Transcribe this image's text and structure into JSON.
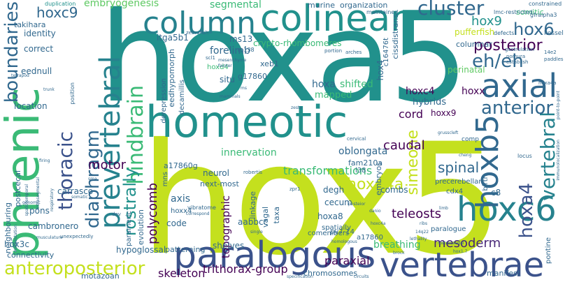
{
  "palette": {
    "teal": "#21918c",
    "green": "#3aba76",
    "lime": "#c4e01e",
    "yellow": "#e9e51a",
    "blue": "#31688e",
    "indigo": "#3b528b",
    "purple": "#482878",
    "dark": "#440154",
    "mint": "#5ec962",
    "sea": "#26828e"
  },
  "words": {
    "hoxa5": "hoxa5",
    "hox5": "hox5",
    "phrenic": "phrenic",
    "homeotic": "homeotic",
    "paralogous": "paralogous",
    "vertebrae": "vertebrae",
    "colinear": "colinear",
    "column": "column",
    "hoxc6": "hoxc6",
    "hoxb5": "hoxb5",
    "axial": "axial",
    "prevertebral": "prevertebral",
    "anteroposterior": "anteroposterior",
    "boundaries": "boundaries",
    "hindbrain": "hindbrain",
    "thoracic": "thoracic",
    "diaphragm": "diaphragm",
    "rostrally": "rostrally",
    "motor": "motor",
    "posterior": "posterior",
    "anterior": "anterior",
    "vertebral": "vertebral",
    "cluster": "cluster",
    "hox9": "hox9",
    "hox6": "hox6",
    "eh_eh": "eh/eh",
    "hoxd4a": "hoxd4a",
    "hoxa4": "hoxa4",
    "spinal": "spinal",
    "simeone": "simeone",
    "teleosts": "teleosts",
    "mesoderm": "mesoderm",
    "transformations": "transformations",
    "caudal": "caudal",
    "cord": "cord",
    "embryogenesis": "embryogenesis",
    "segmental": "segmental",
    "hoxc9": "hoxc9",
    "forelimb": "forelimb",
    "trithorax_group": "trithorax-group",
    "skeleton": "skeleton",
    "paraxial": "paraxial",
    "breathing": "breathing",
    "innervation": "innervation",
    "polycomb": "polycomb",
    "topographic": "topographic",
    "hoxa": "hoxa",
    "shifted": "shifted",
    "mapped": "mapped",
    "hoxc4": "hoxc4",
    "hybrids": "hybrids",
    "hoxx": "hoxx",
    "hoxx9": "hoxx9",
    "perinatal": "perinatal",
    "columnar": "columnar",
    "puffer_fish": "pufferfish",
    "somitic": "somitic",
    "crypto_rhombomeres": "crypto-rhombomeres",
    "organization": "organization",
    "murine": "murine",
    "identity": "identity",
    "correct": "correct",
    "takihara": "takihara",
    "duplication": "duplication",
    "itga5b1": "itga5b1",
    "ms13": "ms13",
    "xeb1": "xeb1",
    "g17860": "g17860",
    "situ": "situ",
    "hoxd4": "hoxd4",
    "eedhypomorph": "eedhypomorph",
    "decamillis": "decamillis",
    "derepression": "derepression",
    "neurol": "neurol",
    "next_most": "next-most",
    "axis": "axis",
    "code": "code",
    "hoxa4_small": "hoxx4",
    "aabbcc": "aabbcc",
    "hoxa8": "hoxa8",
    "linkage": "linkage",
    "vagal": "vagal",
    "taxa": "taxa",
    "degh": "degh",
    "cecum": "cecum",
    "combs": "combs",
    "embryos": "embryos",
    "pv7_14": "pv7-14",
    "shelves": "shelves",
    "comembers": "comembers",
    "hoxa_label": "hoxb",
    "motazoan": "motazoan",
    "hypoglossal": "hypoglossal",
    "parameric": "parameric",
    "evolution": "evolution",
    "connectivity": "connectivity",
    "cambronero": "cambronero",
    "pons": "pons",
    "neighbouring": "neighbouring",
    "postcecal": "postcecal",
    "hox3c": "hox3c",
    "carrasco": "carrasco",
    "location": "location",
    "eednull": "eednull",
    "oblongata": "oblongata",
    "fam210a": "fam210a",
    "a17860g": "a17860g",
    "l38": "l38",
    "precerebellar": "precerebellar",
    "cdx4": "cdx4",
    "c8": "c8",
    "birth": "birth",
    "paralogue": "paralogue",
    "a17860": "a17860",
    "chromosomes": "chromosomes",
    "manifest": "manifest",
    "pontine": "pontine",
    "dev": "dev",
    "defects": "defects",
    "lmc_restricted": "lmc-restricted",
    "gfralpha3": "gfralpha3",
    "kessel": "kessel",
    "maintained": "maintained",
    "cisdisdtrans": "cissdistrans",
    "hox4": "hox4",
    "c16476t": "c16476t",
    "spatially": "spatially",
    "patterning": "patterning",
    "mns": "mns",
    "zebrafish": "zebrafish",
    "rp138": "rp138",
    "scl1": "scl1",
    "arches": "arches",
    "portion": "portion",
    "gastrulation": "gastrulation",
    "nomura": "nomura",
    "establish": "establish",
    "mesenchyme": "mesenchyme",
    "fainter": "fainter",
    "mammals": "mammals",
    "zeste": "zeste",
    "cervical": "cervical",
    "grusscleft": "grusscleft",
    "comp": "comp",
    "locus": "locus",
    "immunolocalization": "immunolocalization",
    "point_to_point": "point-to-point",
    "hoxa4a": "hoxa4a",
    "constrained": "constrained",
    "respiratory": "respiratory",
    "vibratome": "vibratome",
    "correspond": "correspond",
    "robertis": "robertis",
    "zpr1": "zpr1",
    "posteior": "posteior",
    "danio": "danio",
    "lethality": "lethality",
    "limb": "limb",
    "rostrocaudal": "rostrocaudal",
    "homologous": "homologous",
    "circuits": "circuits",
    "specification": "specification",
    "hoxc4a": "hoxc4a",
    "unexpectedly": "unexpectedly",
    "musculature": "musculature",
    "somatic": "somatic",
    "genomic": "genomic",
    "tetrapod": "tetrapod",
    "firing": "firing",
    "trunk": "trunk",
    "position": "position",
    "spatiotemporal": "spatiotemporal",
    "intrasegmental": "intrasegmental",
    "midgestation": "midgestation",
    "sma": "sma",
    "single": "single",
    "ribs": "ribs",
    "l4q22": "14q22",
    "brock": "brock",
    "hox17": "hox1.7",
    "ms": "ms",
    "cheng": "cheng",
    "gx": "14e2",
    "pharyng": "paddles"
  }
}
